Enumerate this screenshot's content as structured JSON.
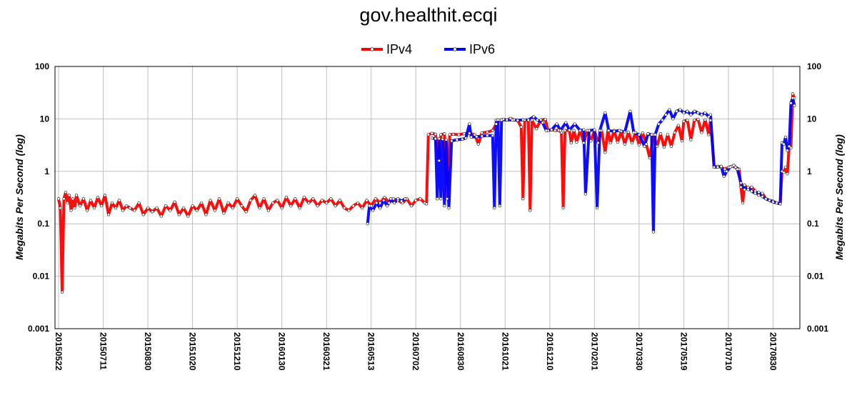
{
  "chart_data": {
    "type": "line",
    "title": "gov.healthit.ecqi",
    "xlabel": "",
    "ylabel": "Megabits Per Second (log)",
    "yscale": "log",
    "ylim": [
      0.001,
      100
    ],
    "xlim": [
      -4,
      830
    ],
    "grid": true,
    "legend_position": "top-center",
    "y_ticks": [
      100,
      10,
      1,
      0.1,
      0.01,
      0.001
    ],
    "y_tick_labels": [
      "100",
      "10",
      "1",
      "0.1",
      "0.01",
      "0.001"
    ],
    "x_ticks": [
      0,
      50,
      100,
      150,
      200,
      250,
      300,
      350,
      400,
      450,
      500,
      550,
      600,
      650,
      700,
      750,
      800
    ],
    "x_tick_labels": [
      "20150522",
      "20150711",
      "20150830",
      "20151020",
      "20151210",
      "20160130",
      "20160321",
      "20160513",
      "20160702",
      "20160830",
      "20161021",
      "20161210",
      "20170201",
      "20170330",
      "20170519",
      "20170710",
      "20170830"
    ],
    "series": [
      {
        "name": "IPv4",
        "color": "#ff0000",
        "points": [
          [
            0,
            0.3
          ],
          [
            2,
            0.2
          ],
          [
            4,
            0.005
          ],
          [
            6,
            0.3
          ],
          [
            8,
            0.4
          ],
          [
            10,
            0.25
          ],
          [
            12,
            0.35
          ],
          [
            14,
            0.18
          ],
          [
            16,
            0.3
          ],
          [
            18,
            0.2
          ],
          [
            20,
            0.35
          ],
          [
            24,
            0.22
          ],
          [
            28,
            0.3
          ],
          [
            32,
            0.18
          ],
          [
            36,
            0.28
          ],
          [
            40,
            0.2
          ],
          [
            44,
            0.32
          ],
          [
            48,
            0.22
          ],
          [
            52,
            0.35
          ],
          [
            56,
            0.15
          ],
          [
            60,
            0.25
          ],
          [
            64,
            0.2
          ],
          [
            68,
            0.28
          ],
          [
            72,
            0.18
          ],
          [
            76,
            0.22
          ],
          [
            80,
            0.2
          ],
          [
            85,
            0.18
          ],
          [
            90,
            0.25
          ],
          [
            95,
            0.15
          ],
          [
            100,
            0.2
          ],
          [
            105,
            0.17
          ],
          [
            110,
            0.2
          ],
          [
            115,
            0.14
          ],
          [
            120,
            0.22
          ],
          [
            125,
            0.18
          ],
          [
            130,
            0.26
          ],
          [
            135,
            0.15
          ],
          [
            140,
            0.2
          ],
          [
            145,
            0.14
          ],
          [
            150,
            0.22
          ],
          [
            155,
            0.18
          ],
          [
            160,
            0.25
          ],
          [
            165,
            0.15
          ],
          [
            170,
            0.28
          ],
          [
            175,
            0.18
          ],
          [
            180,
            0.3
          ],
          [
            185,
            0.16
          ],
          [
            190,
            0.25
          ],
          [
            195,
            0.2
          ],
          [
            200,
            0.3
          ],
          [
            205,
            0.22
          ],
          [
            210,
            0.17
          ],
          [
            215,
            0.28
          ],
          [
            220,
            0.35
          ],
          [
            225,
            0.2
          ],
          [
            230,
            0.3
          ],
          [
            235,
            0.18
          ],
          [
            240,
            0.25
          ],
          [
            245,
            0.28
          ],
          [
            250,
            0.2
          ],
          [
            255,
            0.32
          ],
          [
            260,
            0.22
          ],
          [
            265,
            0.3
          ],
          [
            270,
            0.2
          ],
          [
            275,
            0.32
          ],
          [
            280,
            0.25
          ],
          [
            285,
            0.3
          ],
          [
            290,
            0.22
          ],
          [
            295,
            0.28
          ],
          [
            300,
            0.25
          ],
          [
            305,
            0.3
          ],
          [
            310,
            0.22
          ],
          [
            315,
            0.28
          ],
          [
            320,
            0.2
          ],
          [
            325,
            0.18
          ],
          [
            330,
            0.22
          ],
          [
            335,
            0.25
          ],
          [
            340,
            0.2
          ],
          [
            345,
            0.28
          ],
          [
            350,
            0.22
          ],
          [
            355,
            0.3
          ],
          [
            360,
            0.25
          ],
          [
            365,
            0.32
          ],
          [
            370,
            0.25
          ],
          [
            375,
            0.3
          ],
          [
            380,
            0.28
          ],
          [
            385,
            0.25
          ],
          [
            390,
            0.3
          ],
          [
            395,
            0.22
          ],
          [
            400,
            0.28
          ],
          [
            405,
            0.3
          ],
          [
            410,
            0.25
          ],
          [
            412,
            0.24
          ],
          [
            414,
            5.0
          ],
          [
            418,
            5.3
          ],
          [
            422,
            5.1
          ],
          [
            426,
            1.6
          ],
          [
            428,
            5.0
          ],
          [
            432,
            5.2
          ],
          [
            435,
            0.3
          ],
          [
            438,
            5.0
          ],
          [
            442,
            5.1
          ],
          [
            448,
            5.0
          ],
          [
            454,
            5.2
          ],
          [
            460,
            5.3
          ],
          [
            466,
            5.0
          ],
          [
            470,
            3.3
          ],
          [
            474,
            5.4
          ],
          [
            480,
            5.6
          ],
          [
            486,
            6.0
          ],
          [
            490,
            8.0
          ],
          [
            494,
            9.5
          ],
          [
            498,
            9.8
          ],
          [
            502,
            9.5
          ],
          [
            506,
            10.2
          ],
          [
            510,
            9.6
          ],
          [
            514,
            9.4
          ],
          [
            518,
            7.0
          ],
          [
            520,
            0.3
          ],
          [
            522,
            9.5
          ],
          [
            526,
            9.6
          ],
          [
            528,
            0.18
          ],
          [
            530,
            9.5
          ],
          [
            535,
            6.5
          ],
          [
            540,
            9.6
          ],
          [
            545,
            9.8
          ],
          [
            548,
            6.0
          ],
          [
            552,
            6.2
          ],
          [
            556,
            6.0
          ],
          [
            560,
            6.1
          ],
          [
            563,
            5.5
          ],
          [
            565,
            0.2
          ],
          [
            567,
            6.0
          ],
          [
            572,
            6.1
          ],
          [
            574,
            3.5
          ],
          [
            577,
            6.0
          ],
          [
            580,
            3.6
          ],
          [
            584,
            6.1
          ],
          [
            588,
            3.5
          ],
          [
            592,
            6.0
          ],
          [
            596,
            3.8
          ],
          [
            600,
            6.0
          ],
          [
            604,
            3.5
          ],
          [
            608,
            6.0
          ],
          [
            612,
            2.3
          ],
          [
            615,
            6.0
          ],
          [
            618,
            3.5
          ],
          [
            622,
            6.0
          ],
          [
            626,
            3.6
          ],
          [
            630,
            5.8
          ],
          [
            634,
            3.3
          ],
          [
            638,
            5.6
          ],
          [
            642,
            3.5
          ],
          [
            646,
            5.5
          ],
          [
            650,
            3.2
          ],
          [
            654,
            5.4
          ],
          [
            658,
            3.3
          ],
          [
            662,
            1.8
          ],
          [
            666,
            5.0
          ],
          [
            670,
            3.0
          ],
          [
            674,
            5.2
          ],
          [
            678,
            2.9
          ],
          [
            682,
            5.0
          ],
          [
            686,
            3.0
          ],
          [
            690,
            5.5
          ],
          [
            694,
            7.5
          ],
          [
            698,
            3.8
          ],
          [
            700,
            9.0
          ],
          [
            704,
            9.5
          ],
          [
            708,
            4.0
          ],
          [
            712,
            9.5
          ],
          [
            716,
            9.8
          ],
          [
            720,
            5.5
          ],
          [
            724,
            9.6
          ],
          [
            728,
            5.0
          ],
          [
            730,
            9.4
          ],
          [
            734,
            1.2
          ],
          [
            738,
            1.25
          ],
          [
            742,
            1.2
          ],
          [
            746,
            1.1
          ],
          [
            750,
            1.2
          ],
          [
            754,
            1.25
          ],
          [
            758,
            1.2
          ],
          [
            762,
            1.1
          ],
          [
            764,
            0.5
          ],
          [
            766,
            0.25
          ],
          [
            768,
            0.55
          ],
          [
            772,
            0.45
          ],
          [
            776,
            0.5
          ],
          [
            780,
            0.42
          ],
          [
            784,
            0.35
          ],
          [
            788,
            0.38
          ],
          [
            792,
            0.3
          ],
          [
            796,
            0.28
          ],
          [
            800,
            0.27
          ],
          [
            804,
            0.25
          ],
          [
            808,
            0.24
          ],
          [
            810,
            1.0
          ],
          [
            812,
            0.95
          ],
          [
            814,
            1.2
          ],
          [
            816,
            0.9
          ],
          [
            818,
            3.0
          ],
          [
            820,
            2.8
          ],
          [
            822,
            30
          ],
          [
            824,
            25
          ]
        ]
      },
      {
        "name": "IPv6",
        "color": "#0000ff",
        "points": [
          [
            346,
            0.1
          ],
          [
            348,
            0.22
          ],
          [
            352,
            0.18
          ],
          [
            356,
            0.25
          ],
          [
            360,
            0.2
          ],
          [
            364,
            0.28
          ],
          [
            368,
            0.22
          ],
          [
            372,
            0.3
          ],
          [
            376,
            0.25
          ],
          [
            380,
            0.3
          ],
          [
            384,
            0.27
          ],
          [
            388,
            0.3
          ],
          null,
          [
            418,
            4.3
          ],
          [
            422,
            4.2
          ],
          [
            424,
            0.3
          ],
          [
            426,
            4.2
          ],
          [
            428,
            0.3
          ],
          [
            430,
            4.1
          ],
          [
            432,
            0.22
          ],
          [
            434,
            4.0
          ],
          [
            437,
            0.2
          ],
          [
            440,
            3.8
          ],
          [
            446,
            4.0
          ],
          [
            452,
            4.1
          ],
          [
            456,
            4.3
          ],
          [
            460,
            8.0
          ],
          [
            462,
            4.5
          ],
          [
            468,
            4.6
          ],
          [
            474,
            4.7
          ],
          [
            480,
            4.8
          ],
          [
            486,
            4.8
          ],
          [
            488,
            0.2
          ],
          [
            490,
            9.5
          ],
          [
            492,
            9.6
          ],
          [
            494,
            0.22
          ],
          [
            496,
            9.5
          ],
          [
            502,
            9.6
          ],
          [
            508,
            9.5
          ],
          [
            514,
            9.4
          ],
          [
            520,
            9.6
          ],
          [
            526,
            9.5
          ],
          [
            532,
            11
          ],
          [
            536,
            9.5
          ],
          [
            542,
            8.5
          ],
          [
            546,
            6.0
          ],
          [
            552,
            6.2
          ],
          [
            558,
            8.0
          ],
          [
            562,
            6.0
          ],
          [
            568,
            8.5
          ],
          [
            572,
            6.1
          ],
          [
            578,
            8.0
          ],
          [
            584,
            6.0
          ],
          [
            588,
            6.2
          ],
          [
            590,
            0.37
          ],
          [
            594,
            6.0
          ],
          [
            600,
            6.2
          ],
          [
            603,
            0.2
          ],
          [
            606,
            6.0
          ],
          [
            612,
            13
          ],
          [
            616,
            6.0
          ],
          [
            622,
            5.8
          ],
          [
            628,
            6.0
          ],
          [
            634,
            5.6
          ],
          [
            640,
            14
          ],
          [
            644,
            5.5
          ],
          [
            650,
            5.0
          ],
          [
            656,
            3.0
          ],
          [
            660,
            5.2
          ],
          [
            664,
            5.0
          ],
          [
            666,
            0.07
          ],
          [
            668,
            5.0
          ],
          [
            672,
            8.0
          ],
          [
            676,
            9.5
          ],
          [
            680,
            12
          ],
          [
            684,
            15
          ],
          [
            688,
            10
          ],
          [
            692,
            14
          ],
          [
            696,
            15
          ],
          [
            700,
            13
          ],
          [
            704,
            14
          ],
          [
            708,
            12
          ],
          [
            712,
            14
          ],
          [
            716,
            13
          ],
          [
            720,
            12
          ],
          [
            724,
            13
          ],
          [
            728,
            11
          ],
          [
            730,
            12
          ],
          [
            734,
            1.2
          ],
          [
            738,
            1.2
          ],
          [
            742,
            1.25
          ],
          [
            745,
            0.8
          ],
          [
            748,
            1.0
          ],
          [
            752,
            1.2
          ],
          [
            756,
            1.3
          ],
          [
            760,
            1.1
          ],
          [
            764,
            0.6
          ],
          [
            768,
            0.45
          ],
          [
            772,
            0.5
          ],
          [
            776,
            0.42
          ],
          [
            780,
            0.38
          ],
          [
            784,
            0.4
          ],
          [
            788,
            0.33
          ],
          [
            792,
            0.3
          ],
          [
            796,
            0.28
          ],
          [
            800,
            0.26
          ],
          [
            804,
            0.25
          ],
          [
            808,
            0.24
          ],
          [
            810,
            3.5
          ],
          [
            812,
            3.3
          ],
          [
            814,
            4.5
          ],
          [
            816,
            2.5
          ],
          [
            818,
            3.0
          ],
          [
            820,
            20
          ],
          [
            822,
            25
          ],
          [
            824,
            18
          ]
        ]
      }
    ]
  }
}
